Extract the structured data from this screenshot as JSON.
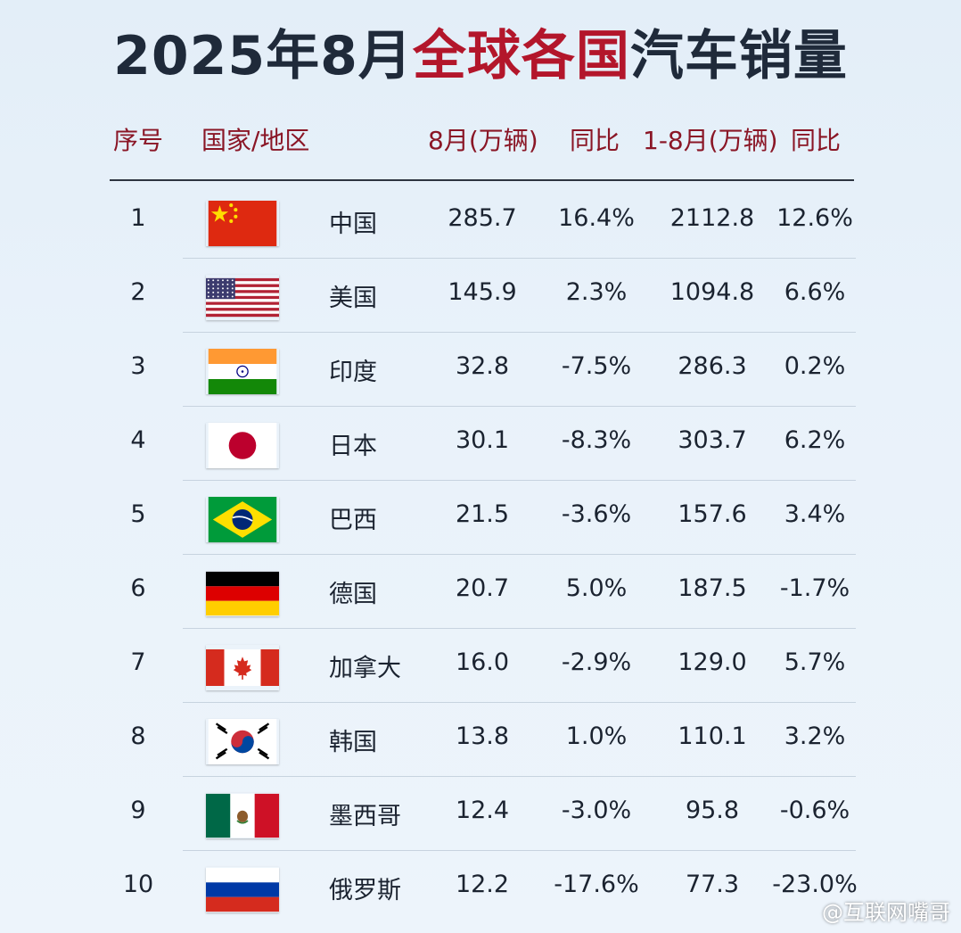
{
  "title": {
    "part1": "2025年8月",
    "highlight": "全球各国",
    "part2": "汽车销量"
  },
  "chart_data": {
    "type": "table",
    "columns": [
      "序号",
      "国家/地区",
      "8月(万辆)",
      "同比",
      "1-8月(万辆)",
      "同比"
    ],
    "rows": [
      {
        "rank": "1",
        "country": "中国",
        "aug": "285.7",
        "aug_yoy": "16.4%",
        "ytd": "2112.8",
        "ytd_yoy": "12.6%",
        "flag": "china-flag-icon"
      },
      {
        "rank": "2",
        "country": "美国",
        "aug": "145.9",
        "aug_yoy": "2.3%",
        "ytd": "1094.8",
        "ytd_yoy": "6.6%",
        "flag": "usa-flag-icon"
      },
      {
        "rank": "3",
        "country": "印度",
        "aug": "32.8",
        "aug_yoy": "-7.5%",
        "ytd": "286.3",
        "ytd_yoy": "0.2%",
        "flag": "india-flag-icon"
      },
      {
        "rank": "4",
        "country": "日本",
        "aug": "30.1",
        "aug_yoy": "-8.3%",
        "ytd": "303.7",
        "ytd_yoy": "6.2%",
        "flag": "japan-flag-icon"
      },
      {
        "rank": "5",
        "country": "巴西",
        "aug": "21.5",
        "aug_yoy": "-3.6%",
        "ytd": "157.6",
        "ytd_yoy": "3.4%",
        "flag": "brazil-flag-icon"
      },
      {
        "rank": "6",
        "country": "德国",
        "aug": "20.7",
        "aug_yoy": "5.0%",
        "ytd": "187.5",
        "ytd_yoy": "-1.7%",
        "flag": "germany-flag-icon"
      },
      {
        "rank": "7",
        "country": "加拿大",
        "aug": "16.0",
        "aug_yoy": "-2.9%",
        "ytd": "129.0",
        "ytd_yoy": "5.7%",
        "flag": "canada-flag-icon"
      },
      {
        "rank": "8",
        "country": "韩国",
        "aug": "13.8",
        "aug_yoy": "1.0%",
        "ytd": "110.1",
        "ytd_yoy": "3.2%",
        "flag": "korea-flag-icon"
      },
      {
        "rank": "9",
        "country": "墨西哥",
        "aug": "12.4",
        "aug_yoy": "-3.0%",
        "ytd": "95.8",
        "ytd_yoy": "-0.6%",
        "flag": "mexico-flag-icon"
      },
      {
        "rank": "10",
        "country": "俄罗斯",
        "aug": "12.2",
        "aug_yoy": "-17.6%",
        "ytd": "77.3",
        "ytd_yoy": "-23.0%",
        "flag": "russia-flag-icon"
      }
    ]
  },
  "watermark": "@互联网嘴哥",
  "colors": {
    "title_highlight": "#b3162b",
    "header_text": "#8a1626",
    "background": "#e6f0f9"
  }
}
